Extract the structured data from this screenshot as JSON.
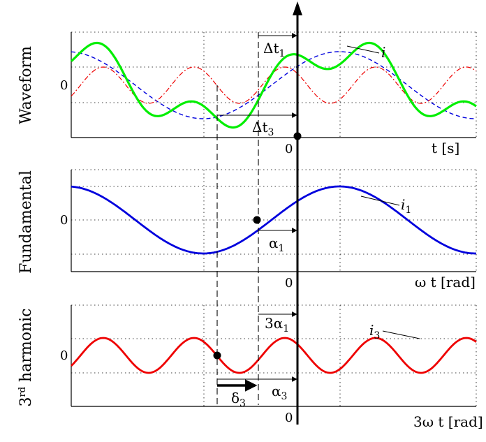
{
  "figure": {
    "panels": [
      {
        "id": "waveform",
        "title": "Waveform",
        "zero_label": "0",
        "origin_label": "0",
        "x_label": "t [s]",
        "signal_label": "i",
        "annotations": {
          "dt1": {
            "base": "Δt",
            "sub": "1"
          },
          "dt3": {
            "base": "Δt",
            "sub": "3"
          }
        }
      },
      {
        "id": "fundamental",
        "title": "Fundamental",
        "zero_label": "0",
        "origin_label": "0",
        "x_label": "ω t [rad]",
        "signal_label": {
          "base": "i",
          "sub": "1"
        },
        "annotations": {
          "alpha1": {
            "base": "α",
            "sub": "1"
          }
        }
      },
      {
        "id": "harmonic",
        "title": {
          "pre": "3",
          "sup": "rd",
          "post": " harmonic"
        },
        "zero_label": "0",
        "origin_label": "0",
        "x_label": "3ω t [rad]",
        "signal_label": {
          "base": "i",
          "sub": "3"
        },
        "annotations": {
          "three_alpha1": {
            "base": "3α",
            "sub": "1"
          },
          "alpha3": {
            "base": "α",
            "sub": "3"
          },
          "delta3": {
            "base": "δ",
            "sub": "3"
          }
        }
      }
    ],
    "colors": {
      "total": "#00ee00",
      "fundamental": "#0000dd",
      "third": "#ee0000",
      "axes": "#000000",
      "grid": "#000000"
    },
    "signal_model": {
      "fundamental": {
        "phase_shift_rad": 0.6,
        "relative_amplitude": 1.0
      },
      "third_harmonic": {
        "phase_shift_rad": 2.45,
        "relative_amplitude": 0.5
      }
    }
  }
}
